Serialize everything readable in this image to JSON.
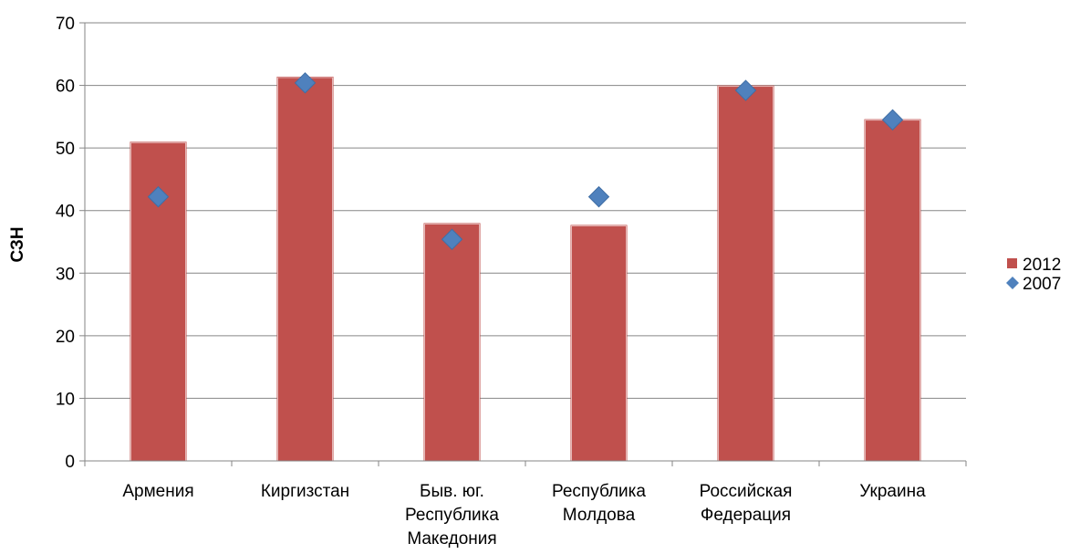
{
  "chart_data": {
    "type": "bar",
    "categories": [
      [
        "Армения"
      ],
      [
        "Киргизстан"
      ],
      [
        "Быв. юг.",
        "Республика",
        "Македония"
      ],
      [
        "Республика",
        "Молдова"
      ],
      [
        "Российская",
        "Федерация"
      ],
      [
        "Украина"
      ]
    ],
    "series": [
      {
        "name": "2012",
        "type": "bar",
        "color": "#C0504D",
        "values": [
          51.0,
          61.4,
          38.0,
          37.7,
          60.0,
          54.6
        ]
      },
      {
        "name": "2007",
        "type": "scatter",
        "marker": "diamond",
        "color": "#4F81BD",
        "values": [
          42.2,
          60.4,
          35.4,
          42.2,
          59.2,
          54.5
        ]
      }
    ],
    "ylabel": "СЗН",
    "ylim": [
      0,
      70
    ],
    "yticks": [
      0,
      10,
      20,
      30,
      40,
      50,
      60,
      70
    ],
    "grid": true,
    "legend": "right"
  }
}
